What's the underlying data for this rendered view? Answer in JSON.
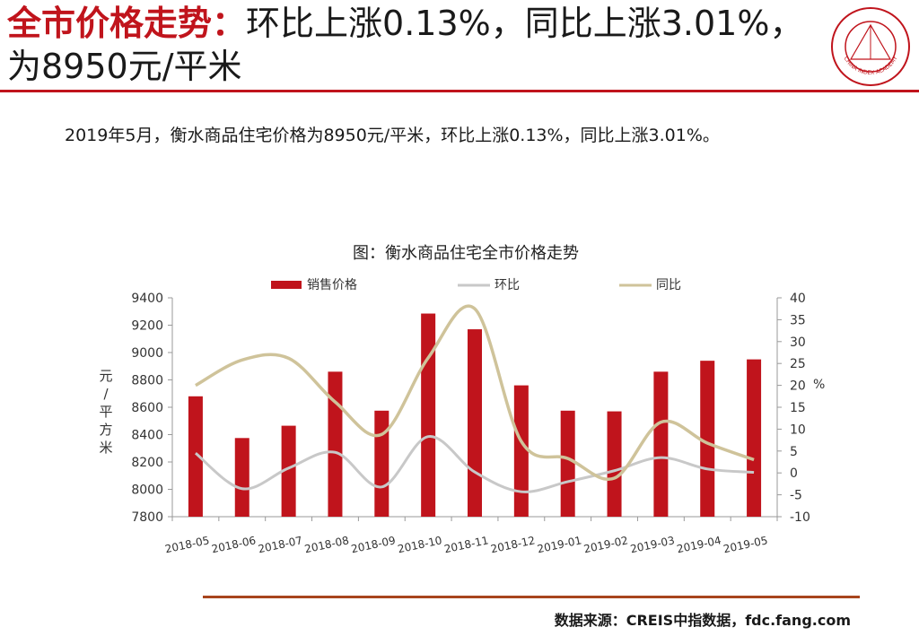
{
  "headline": {
    "red_part": "全市价格走势：",
    "rest": "环比上涨0.13%，同比上涨3.01%，为8950元/平米"
  },
  "summary": "2019年5月，衡水商品住宅价格为8950元/平米，环比上涨0.13%，同比上涨3.01%。",
  "source": "数据来源：CREIS中指数据，fdc.fang.com",
  "colors": {
    "accent_red": "#c0141c",
    "bar": "#c0141c",
    "mom_line": "#c8c8c8",
    "yoy_line": "#cfc39a",
    "bottom_rule": "#a8451e"
  },
  "logo": {
    "icon": "china-index-academy-seal",
    "text": "CHINA INDEX ACADEMY"
  },
  "chart_data": {
    "type": "bar",
    "title": "图：衡水商品住宅全市价格走势",
    "categories": [
      "2018-05",
      "2018-06",
      "2018-07",
      "2018-08",
      "2018-09",
      "2018-10",
      "2018-11",
      "2018-12",
      "2019-01",
      "2019-02",
      "2019-03",
      "2019-04",
      "2019-05"
    ],
    "series": [
      {
        "name": "销售价格",
        "type": "bar",
        "axis": "left",
        "values": [
          8680,
          8375,
          8465,
          8860,
          8575,
          9285,
          9170,
          8760,
          8575,
          8570,
          8860,
          8940,
          8950
        ]
      },
      {
        "name": "环比",
        "type": "line",
        "axis": "right",
        "values": [
          4.5,
          -3.6,
          1.1,
          4.7,
          -3.2,
          8.3,
          0.2,
          -4.3,
          -2.0,
          0.5,
          3.5,
          0.9,
          0.13
        ]
      },
      {
        "name": "同比",
        "type": "line",
        "axis": "right",
        "values": [
          20.0,
          25.8,
          26.2,
          16.2,
          8.8,
          26.3,
          37.5,
          7.2,
          3.3,
          -1.2,
          11.6,
          6.8,
          3.01
        ]
      }
    ],
    "ylabel": "元/平方米",
    "ylim": [
      7800,
      9400
    ],
    "yticks": [
      7800,
      8000,
      8200,
      8400,
      8600,
      8800,
      9000,
      9200,
      9400
    ],
    "y2label": "%",
    "y2lim": [
      -10,
      40
    ],
    "y2ticks": [
      -10,
      -5,
      0,
      5,
      10,
      15,
      20,
      25,
      30,
      35,
      40
    ],
    "legend": "top",
    "grid": false
  }
}
